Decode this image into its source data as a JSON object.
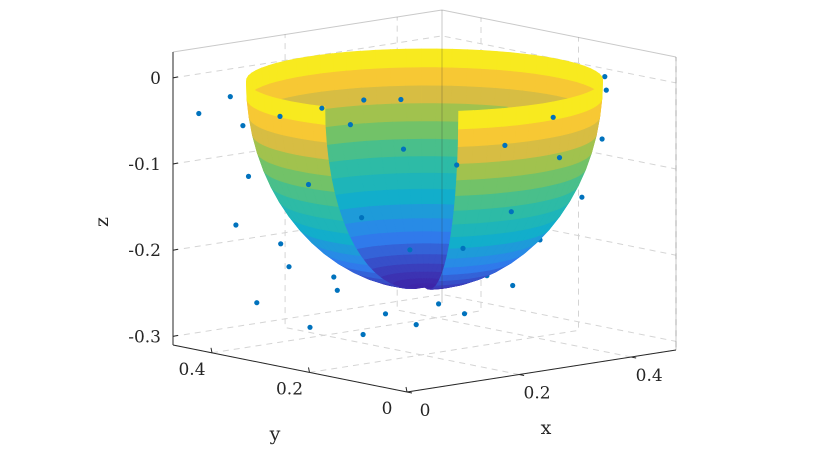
{
  "chart_data": {
    "type": "surface3d",
    "xlabel": "x",
    "ylabel": "y",
    "zlabel": "z",
    "x_ticks": [
      "0",
      "0.2",
      "0.4"
    ],
    "y_ticks": [
      "0",
      "0.2",
      "0.4"
    ],
    "z_ticks": [
      "0",
      "-0.1",
      "-0.2",
      "-0.3"
    ],
    "xlim": [
      0,
      0.48
    ],
    "ylim": [
      0,
      0.48
    ],
    "zlim": [
      -0.31,
      0.03
    ],
    "grid": true,
    "colormap": "parula",
    "colormap_stops": [
      "#3E26A8",
      "#2F7FEF",
      "#11B0C9",
      "#35BE9C",
      "#8CC452",
      "#F7BA3C",
      "#F9FB15"
    ],
    "surface": {
      "shape": "hemispherical bowl",
      "center": [
        0.24,
        0.24,
        0
      ],
      "radius": 0.24,
      "cutout_sector_deg": [
        196,
        240
      ]
    },
    "scatter_color": "#0072BD",
    "scatter_points": [
      [
        0.02,
        0.45,
        -0.04
      ],
      [
        0.05,
        0.42,
        -0.02
      ],
      [
        0.06,
        0.38,
        0.0
      ],
      [
        0.08,
        0.34,
        0.01
      ],
      [
        0.1,
        0.3,
        0.0
      ],
      [
        0.12,
        0.26,
        0.02
      ],
      [
        0.15,
        0.22,
        0.01
      ],
      [
        0.17,
        0.19,
        0.0
      ],
      [
        0.19,
        0.15,
        0.02
      ],
      [
        0.21,
        0.12,
        0.01
      ],
      [
        0.09,
        0.44,
        -0.06
      ],
      [
        0.13,
        0.41,
        -0.05
      ],
      [
        0.17,
        0.37,
        -0.04
      ],
      [
        0.21,
        0.33,
        -0.03
      ],
      [
        0.25,
        0.3,
        -0.03
      ],
      [
        0.29,
        0.26,
        -0.02
      ],
      [
        0.33,
        0.22,
        -0.02
      ],
      [
        0.37,
        0.18,
        -0.01
      ],
      [
        0.41,
        0.14,
        0.0
      ],
      [
        0.44,
        0.1,
        0.0
      ],
      [
        0.06,
        0.42,
        -0.17
      ],
      [
        0.12,
        0.38,
        -0.22
      ],
      [
        0.18,
        0.35,
        -0.25
      ],
      [
        0.24,
        0.32,
        -0.28
      ],
      [
        0.3,
        0.28,
        -0.27
      ],
      [
        0.36,
        0.25,
        -0.24
      ],
      [
        0.42,
        0.21,
        -0.2
      ],
      [
        0.46,
        0.17,
        -0.15
      ],
      [
        0.47,
        0.14,
        -0.08
      ],
      [
        0.46,
        0.12,
        -0.02
      ],
      [
        0.08,
        0.4,
        -0.26
      ],
      [
        0.14,
        0.36,
        -0.29
      ],
      [
        0.2,
        0.32,
        -0.3
      ],
      [
        0.26,
        0.28,
        -0.29
      ],
      [
        0.32,
        0.25,
        -0.28
      ],
      [
        0.38,
        0.22,
        -0.25
      ],
      [
        0.12,
        0.34,
        -0.12
      ],
      [
        0.18,
        0.3,
        -0.16
      ],
      [
        0.24,
        0.27,
        -0.2
      ],
      [
        0.3,
        0.23,
        -0.2
      ],
      [
        0.36,
        0.2,
        -0.16
      ],
      [
        0.42,
        0.17,
        -0.1
      ],
      [
        0.45,
        0.15,
        -0.05
      ],
      [
        0.16,
        0.3,
        -0.05
      ],
      [
        0.22,
        0.26,
        -0.08
      ],
      [
        0.28,
        0.22,
        -0.1
      ],
      [
        0.34,
        0.19,
        -0.08
      ],
      [
        0.4,
        0.16,
        -0.05
      ],
      [
        0.44,
        0.13,
        -0.02
      ],
      [
        0.26,
        0.35,
        -0.22
      ],
      [
        0.32,
        0.32,
        -0.24
      ],
      [
        0.38,
        0.28,
        -0.22
      ],
      [
        0.2,
        0.38,
        -0.24
      ],
      [
        0.14,
        0.42,
        -0.2
      ],
      [
        0.1,
        0.44,
        -0.12
      ]
    ]
  }
}
